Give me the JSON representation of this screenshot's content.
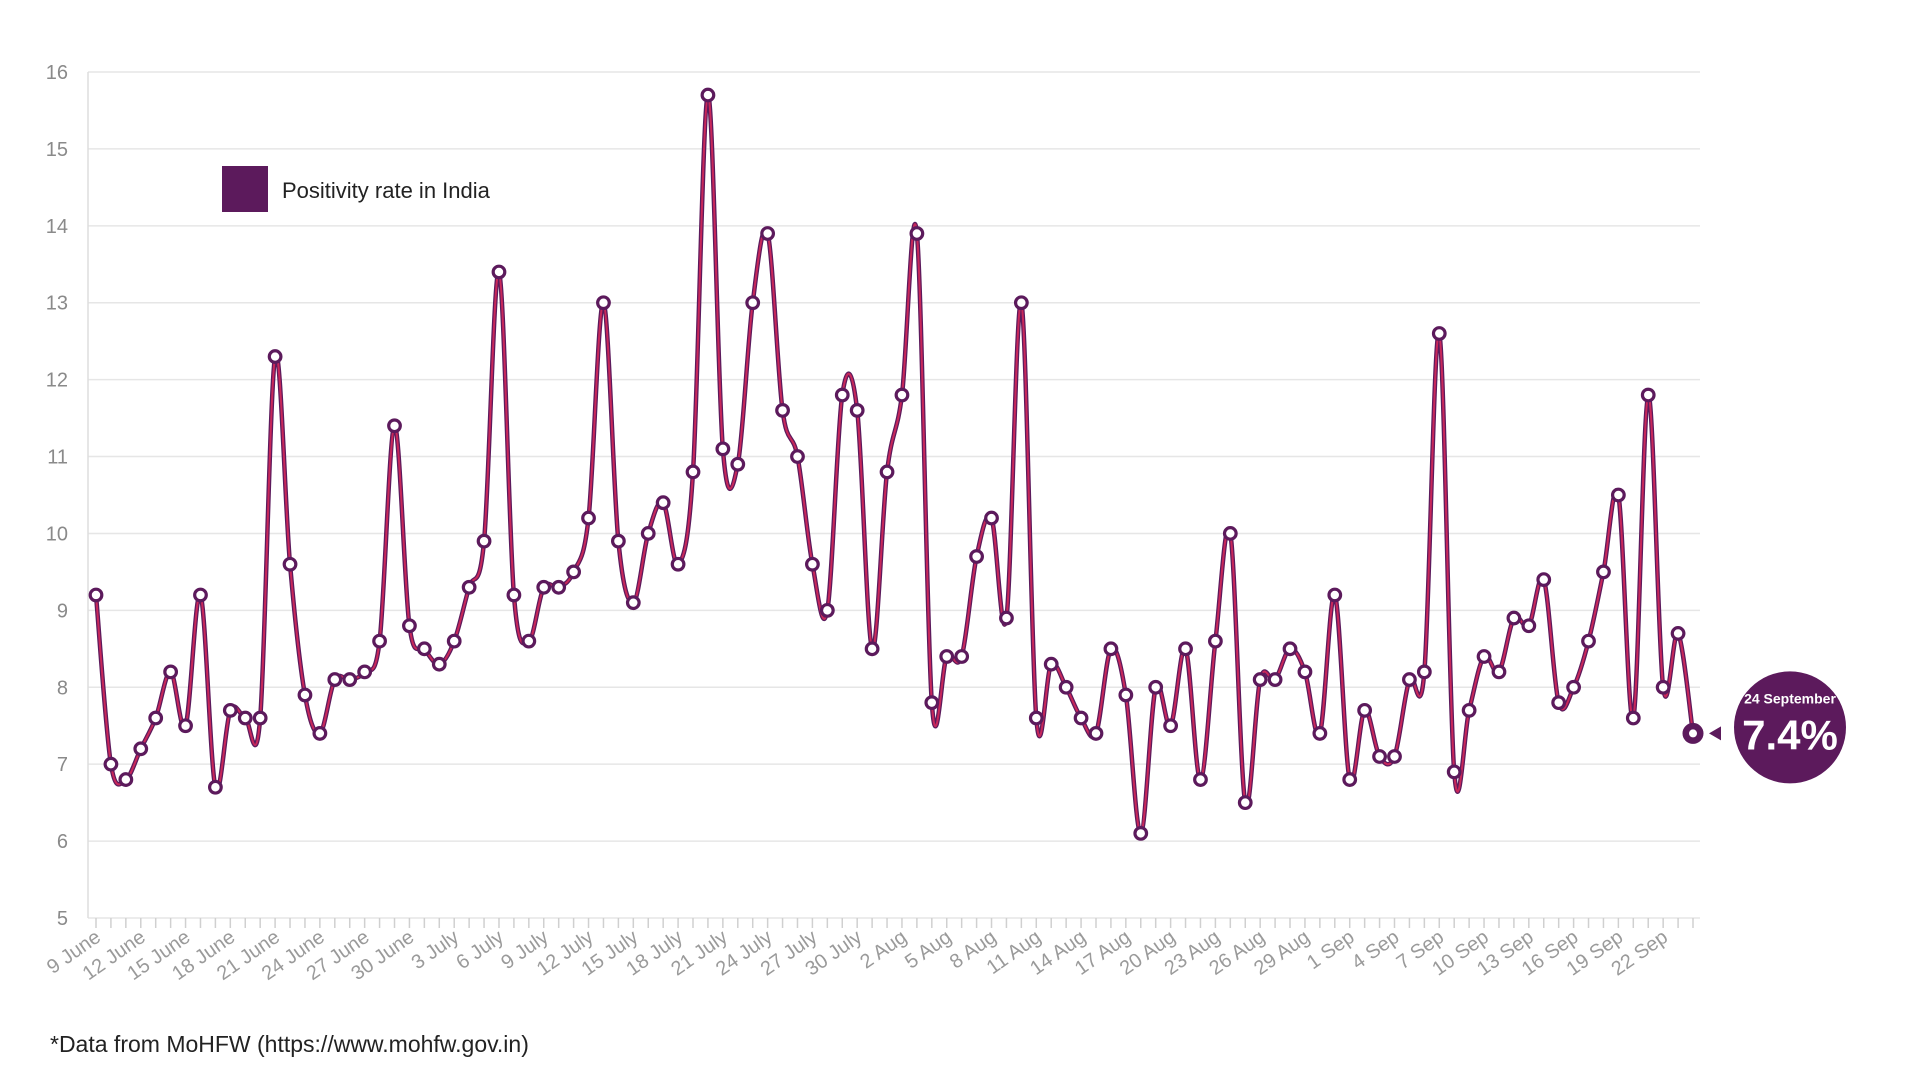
{
  "chart_data": {
    "type": "line",
    "title": "",
    "xlabel": "",
    "ylabel": "",
    "ylim": [
      5,
      16
    ],
    "y_ticks": [
      5,
      6,
      7,
      8,
      9,
      10,
      11,
      12,
      13,
      14,
      15,
      16
    ],
    "grid": true,
    "legend_position": "top-left",
    "x_tick_labels": [
      "9 June",
      "12 June",
      "15 June",
      "18 June",
      "21 June",
      "24 June",
      "27 June",
      "30 June",
      "3 July",
      "6 July",
      "9 July",
      "12 July",
      "15 July",
      "18 July",
      "21 July",
      "24 July",
      "27 July",
      "30 July",
      "2 Aug",
      "5 Aug",
      "8 Aug",
      "11 Aug",
      "14 Aug",
      "17 Aug",
      "20 Aug",
      "23 Aug",
      "26 Aug",
      "29 Aug",
      "1 Sep",
      "4 Sep",
      "7 Sep",
      "10 Sep",
      "13 Sep",
      "16 Sep",
      "19 Sep",
      "22 Sep"
    ],
    "x_start": "9 June",
    "x_end": "24 September",
    "series": [
      {
        "name": "Positivity rate in India",
        "color": "#5c1a5c",
        "line_color": "#c8275a",
        "values": [
          9.2,
          7.0,
          6.8,
          7.2,
          7.6,
          8.2,
          7.5,
          9.2,
          6.7,
          7.7,
          7.6,
          7.6,
          12.3,
          9.6,
          7.9,
          7.4,
          8.1,
          8.1,
          8.2,
          8.6,
          11.4,
          8.8,
          8.5,
          8.3,
          8.6,
          9.3,
          9.9,
          13.4,
          9.2,
          8.6,
          9.3,
          9.3,
          9.5,
          10.2,
          13.0,
          9.9,
          9.1,
          10.0,
          10.4,
          9.6,
          10.8,
          15.7,
          11.1,
          10.9,
          13.0,
          13.9,
          11.6,
          11.0,
          9.6,
          9.0,
          11.8,
          11.6,
          8.5,
          10.8,
          11.8,
          13.9,
          7.8,
          8.4,
          8.4,
          9.7,
          10.2,
          8.9,
          13.0,
          7.6,
          8.3,
          8.0,
          7.6,
          7.4,
          8.5,
          7.9,
          6.1,
          8.0,
          7.5,
          8.5,
          6.8,
          8.6,
          10.0,
          6.5,
          8.1,
          8.1,
          8.5,
          8.2,
          7.4,
          9.2,
          6.8,
          7.7,
          7.1,
          7.1,
          8.1,
          8.2,
          12.6,
          6.9,
          7.7,
          8.4,
          8.2,
          8.9,
          8.8,
          9.4,
          7.8,
          8.0,
          8.6,
          9.5,
          10.5,
          7.6,
          11.8,
          8.0,
          8.7,
          7.4
        ]
      }
    ],
    "annotation": {
      "date": "24 September",
      "value_text": "7.4%",
      "value": 7.4
    }
  },
  "legend": {
    "label": "Positivity rate in India",
    "swatch_color": "#5c1a5c"
  },
  "source_note": "*Data from MoHFW (https://www.mohfw.gov.in)"
}
